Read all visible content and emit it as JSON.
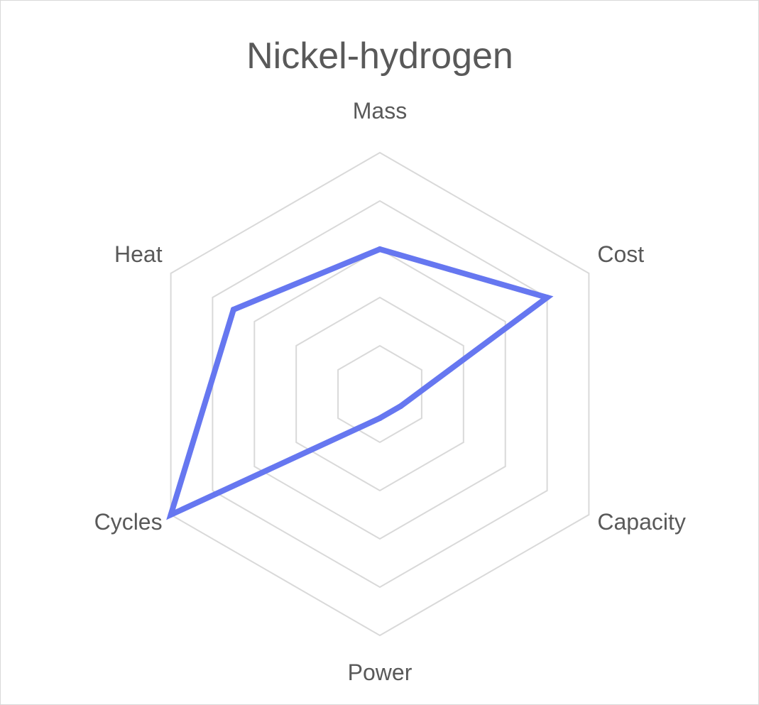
{
  "chart_data": {
    "type": "radar",
    "title": "Nickel-hydrogen",
    "axes": [
      "Mass",
      "Cost",
      "Capacity",
      "Power",
      "Cycles",
      "Heat"
    ],
    "series": [
      {
        "values": [
          3.0,
          4.0,
          0.5,
          0.5,
          5.0,
          3.5
        ],
        "color": "#6677F0"
      }
    ],
    "rlim": [
      0,
      5
    ],
    "ring_count": 5,
    "grid": true,
    "legend": "none"
  }
}
